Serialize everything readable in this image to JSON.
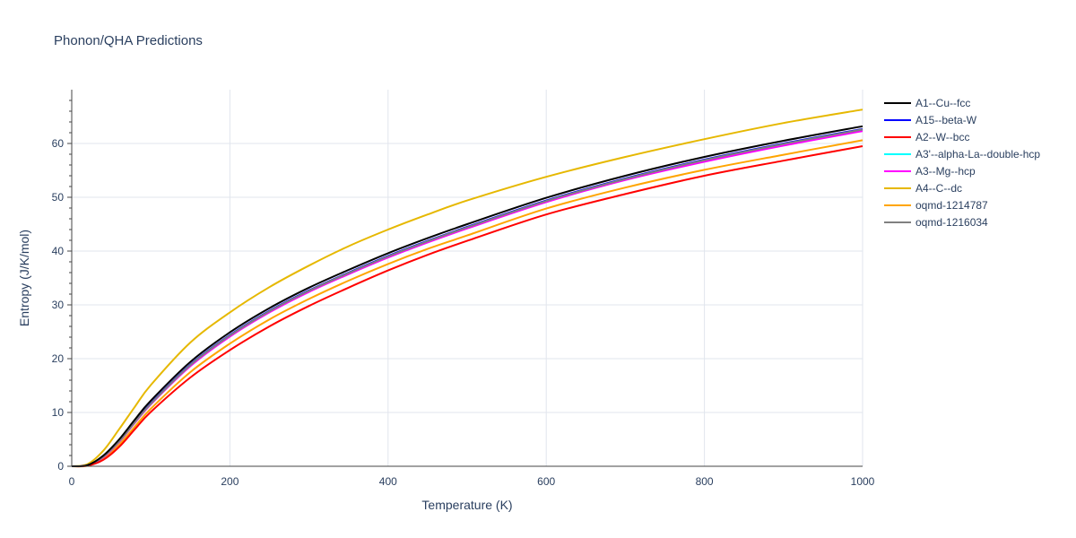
{
  "chart_data": {
    "type": "line",
    "title": "Phonon/QHA Predictions",
    "xlabel": "Temperature (K)",
    "ylabel": "Entropy (J/K/mol)",
    "xlim": [
      0,
      1000
    ],
    "ylim": [
      0,
      70
    ],
    "xticks": [
      0,
      200,
      400,
      600,
      800,
      1000
    ],
    "yticks": [
      0,
      10,
      20,
      30,
      40,
      50,
      60
    ],
    "grid": true,
    "legend_position": "right",
    "x": [
      0,
      20,
      40,
      60,
      80,
      100,
      150,
      200,
      250,
      300,
      350,
      400,
      450,
      500,
      600,
      700,
      800,
      900,
      1000
    ],
    "series": [
      {
        "name": "A1--Cu--fcc",
        "color": "#000000",
        "width": 2,
        "values": [
          0,
          0.2,
          2.0,
          5.0,
          8.7,
          12.2,
          19.4,
          24.9,
          29.4,
          33.2,
          36.5,
          39.6,
          42.4,
          45.0,
          49.9,
          54.0,
          57.5,
          60.5,
          63.2
        ]
      },
      {
        "name": "A15--beta-W",
        "color": "#0000ff",
        "width": 2,
        "values": [
          0,
          0.2,
          1.8,
          4.7,
          8.3,
          11.7,
          18.9,
          24.4,
          28.9,
          32.7,
          36.0,
          39.1,
          41.9,
          44.5,
          49.4,
          53.5,
          57.0,
          60.0,
          62.7
        ]
      },
      {
        "name": "A2--W--bcc",
        "color": "#ff0000",
        "width": 2,
        "values": [
          0,
          0.1,
          1.2,
          3.6,
          6.9,
          10.1,
          16.5,
          21.6,
          26.0,
          29.8,
          33.2,
          36.4,
          39.3,
          41.9,
          46.8,
          50.6,
          54.0,
          56.8,
          59.5
        ]
      },
      {
        "name": "A3'--alpha-La--double-hcp",
        "color": "#00ffff",
        "width": 2,
        "values": [
          0,
          0.2,
          1.8,
          4.6,
          8.2,
          11.6,
          18.7,
          24.2,
          28.7,
          32.5,
          35.8,
          38.9,
          41.7,
          44.3,
          49.2,
          53.3,
          56.8,
          59.8,
          62.5
        ]
      },
      {
        "name": "A3--Mg--hcp",
        "color": "#ff00ff",
        "width": 2,
        "values": [
          0,
          0.2,
          1.7,
          4.5,
          8.1,
          11.5,
          18.6,
          24.1,
          28.6,
          32.4,
          35.7,
          38.8,
          41.6,
          44.2,
          49.1,
          53.2,
          56.6,
          59.6,
          62.3
        ]
      },
      {
        "name": "A4--C--dc",
        "color": "#e6b800",
        "width": 2,
        "values": [
          0,
          0.4,
          2.9,
          6.9,
          11.1,
          15.1,
          23.0,
          28.6,
          33.3,
          37.3,
          40.9,
          44.0,
          46.8,
          49.4,
          53.8,
          57.5,
          60.8,
          63.8,
          66.3
        ]
      },
      {
        "name": "oqmd-1214787",
        "color": "#ffa500",
        "width": 2,
        "values": [
          0,
          0.1,
          1.4,
          4.0,
          7.4,
          10.7,
          17.5,
          22.8,
          27.3,
          31.1,
          34.5,
          37.6,
          40.4,
          42.9,
          47.9,
          51.8,
          55.1,
          57.9,
          60.6
        ]
      },
      {
        "name": "oqmd-1216034",
        "color": "#808080",
        "width": 2,
        "values": [
          0,
          0.2,
          1.8,
          4.6,
          8.2,
          11.6,
          18.8,
          24.3,
          28.8,
          32.6,
          35.9,
          39.0,
          41.8,
          44.4,
          49.3,
          53.4,
          56.9,
          59.9,
          62.6
        ]
      }
    ]
  }
}
